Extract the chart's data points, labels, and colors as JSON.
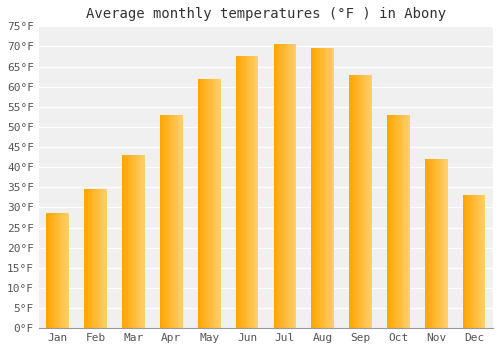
{
  "title": "Average monthly temperatures (°F ) in Abony",
  "months": [
    "Jan",
    "Feb",
    "Mar",
    "Apr",
    "May",
    "Jun",
    "Jul",
    "Aug",
    "Sep",
    "Oct",
    "Nov",
    "Dec"
  ],
  "values": [
    28.5,
    34.5,
    43.0,
    53.0,
    62.0,
    67.5,
    70.5,
    69.5,
    63.0,
    53.0,
    42.0,
    33.0
  ],
  "bar_color_left": "#FFA500",
  "bar_color_right": "#FFD070",
  "ylim": [
    0,
    75
  ],
  "yticks": [
    0,
    5,
    10,
    15,
    20,
    25,
    30,
    35,
    40,
    45,
    50,
    55,
    60,
    65,
    70,
    75
  ],
  "background_color": "#FFFFFF",
  "plot_bg_color": "#F0F0F0",
  "grid_color": "#FFFFFF",
  "title_fontsize": 10,
  "tick_fontsize": 8,
  "font_family": "monospace",
  "bar_width": 0.6
}
